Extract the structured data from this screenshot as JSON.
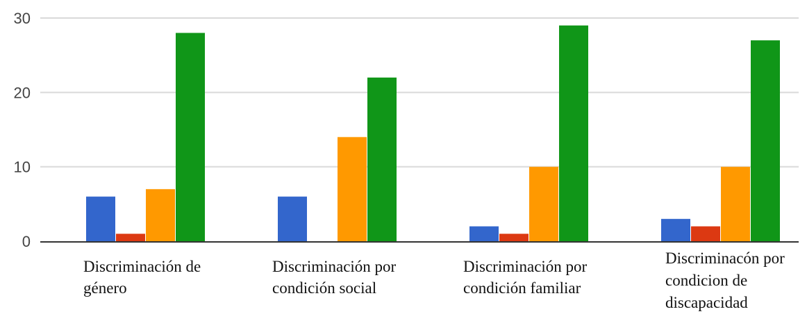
{
  "chart_data": {
    "type": "bar",
    "title": "",
    "xlabel": "",
    "ylabel": "",
    "ylim": [
      0,
      30
    ],
    "yticks": [
      0,
      10,
      20,
      30
    ],
    "grid": true,
    "categories": [
      [
        "Discriminación de",
        "género"
      ],
      [
        "Discriminación por",
        "condición social"
      ],
      [
        "Discriminación por",
        "condición familiar"
      ],
      [
        "Discriminacón por",
        "condicion de",
        "discapacidad"
      ]
    ],
    "series": [
      {
        "color": "#3366cc",
        "values": [
          6,
          6,
          2,
          3
        ]
      },
      {
        "color": "#dc3912",
        "values": [
          1,
          0,
          1,
          2
        ]
      },
      {
        "color": "#ff9900",
        "values": [
          7,
          14,
          10,
          10
        ]
      },
      {
        "color": "#109618",
        "values": [
          28,
          22,
          29,
          27
        ]
      }
    ]
  }
}
